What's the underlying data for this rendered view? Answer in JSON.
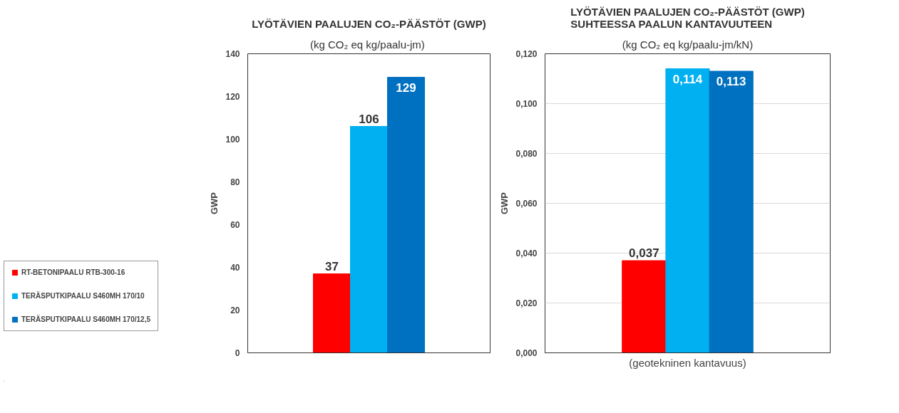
{
  "chart_data": [
    {
      "type": "bar",
      "title": "LYÖTÄVIEN PAALUJEN CO₂-PÄÄSTÖT (GWP)",
      "subtitle": "(kg CO₂  eq kg/paalu-jm)",
      "ylabel": "GWP",
      "categories": [
        null
      ],
      "series": [
        {
          "name": "RT-BETONIPAALU RTB-300-16",
          "color": "#ff0000",
          "values": [
            37
          ]
        },
        {
          "name": "TERÄSPUTKIPAALU S460MH 170/10",
          "color": "#00b0f0",
          "values": [
            106
          ]
        },
        {
          "name": "TERÄSPUTKIPAALU S460MH 170/12,5",
          "color": "#0070c0",
          "values": [
            129
          ]
        }
      ],
      "ylim": [
        0,
        140
      ],
      "yticks": [
        0,
        20,
        40,
        60,
        80,
        100,
        120,
        140
      ],
      "data_labels": true,
      "legend": "left",
      "tick_labels": "y"
    },
    {
      "type": "bar",
      "title": "LYÖTÄVIEN PAALUJEN CO₂-PÄÄSTÖT (GWP)\nSUHTEESSA PAALUN KANTAVUUTEEN",
      "subtitle": "(kg CO₂ eq kg/paalu-jm/kN)",
      "ylabel": "GWP",
      "xlabel": "(geotekninen kantavuus)",
      "categories": [
        null
      ],
      "series": [
        {
          "color": "#ff0000",
          "values": [
            0.037
          ],
          "value_labels": [
            "0,037"
          ]
        },
        {
          "color": "#00b0f0",
          "values": [
            0.114
          ],
          "value_labels": [
            "0,114"
          ]
        },
        {
          "color": "#0070c0",
          "values": [
            0.113
          ],
          "value_labels": [
            "0,113"
          ]
        }
      ],
      "ylim": [
        0,
        0.12
      ],
      "yticks": [
        {
          "value": 0,
          "label": "0,000"
        },
        {
          "value": 0.02,
          "label": "0,020"
        },
        {
          "value": 0.04,
          "label": "0,040"
        },
        {
          "value": 0.06,
          "label": "0,060"
        },
        {
          "value": 0.08,
          "label": "0,080"
        },
        {
          "value": 0.1,
          "label": "0,100"
        },
        {
          "value": 0.12,
          "label": "0,120"
        }
      ],
      "grid": "y",
      "tick_labels": "y"
    }
  ]
}
